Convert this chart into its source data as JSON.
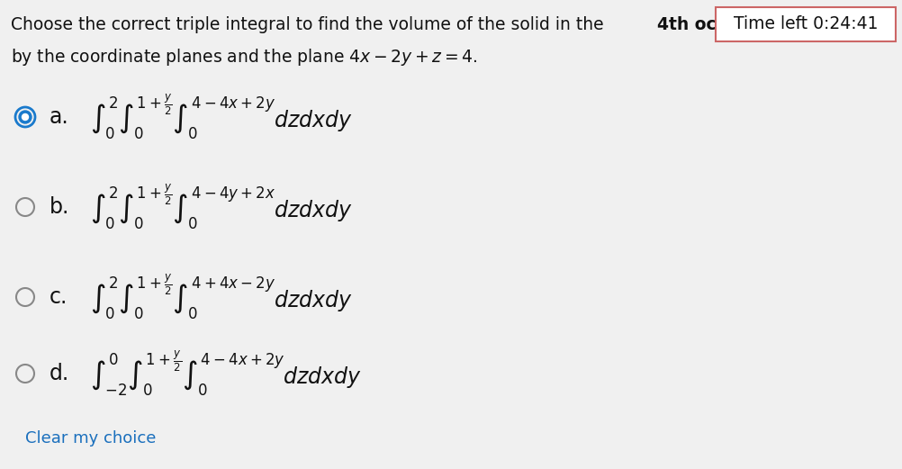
{
  "bg_color": "#f0f0f0",
  "timer_border_color": "#cc6666",
  "timer_text": "Time left 0:24:41",
  "title_normal": "Choose the correct triple integral to find the volume of the solid in the ",
  "title_bold": "4th oc",
  "subtitle": "by the coordinate planes and the plane $4x - 2y + z = 4$.",
  "options": [
    {
      "label": "a.",
      "selected": true,
      "formula": "$\\int_0^2 \\int_0^{1+\\frac{y}{2}} \\int_0^{4-4x+2y} dzdxdy$"
    },
    {
      "label": "b.",
      "selected": false,
      "formula": "$\\int_0^2 \\int_0^{1+\\frac{y}{2}} \\int_0^{4-4y+2x} dzdxdy$"
    },
    {
      "label": "c.",
      "selected": false,
      "formula": "$\\int_0^2 \\int_0^{1+\\frac{y}{2}} \\int_0^{4+4x-2y} dzdxdy$"
    },
    {
      "label": "d.",
      "selected": false,
      "formula": "$\\int_{-2}^{0} \\int_0^{1+\\frac{y}{2}} \\int_0^{4-4x+2y} dzdxdy$"
    }
  ],
  "clear_text": "Clear my choice",
  "clear_color": "#1a6fbd",
  "radio_selected_fill": "#1a7acc",
  "radio_selected_ring": "#1a7acc",
  "radio_unselected_color": "#888888",
  "text_color": "#111111",
  "font_size_title": 13.5,
  "font_size_options": 17,
  "font_size_clear": 13
}
